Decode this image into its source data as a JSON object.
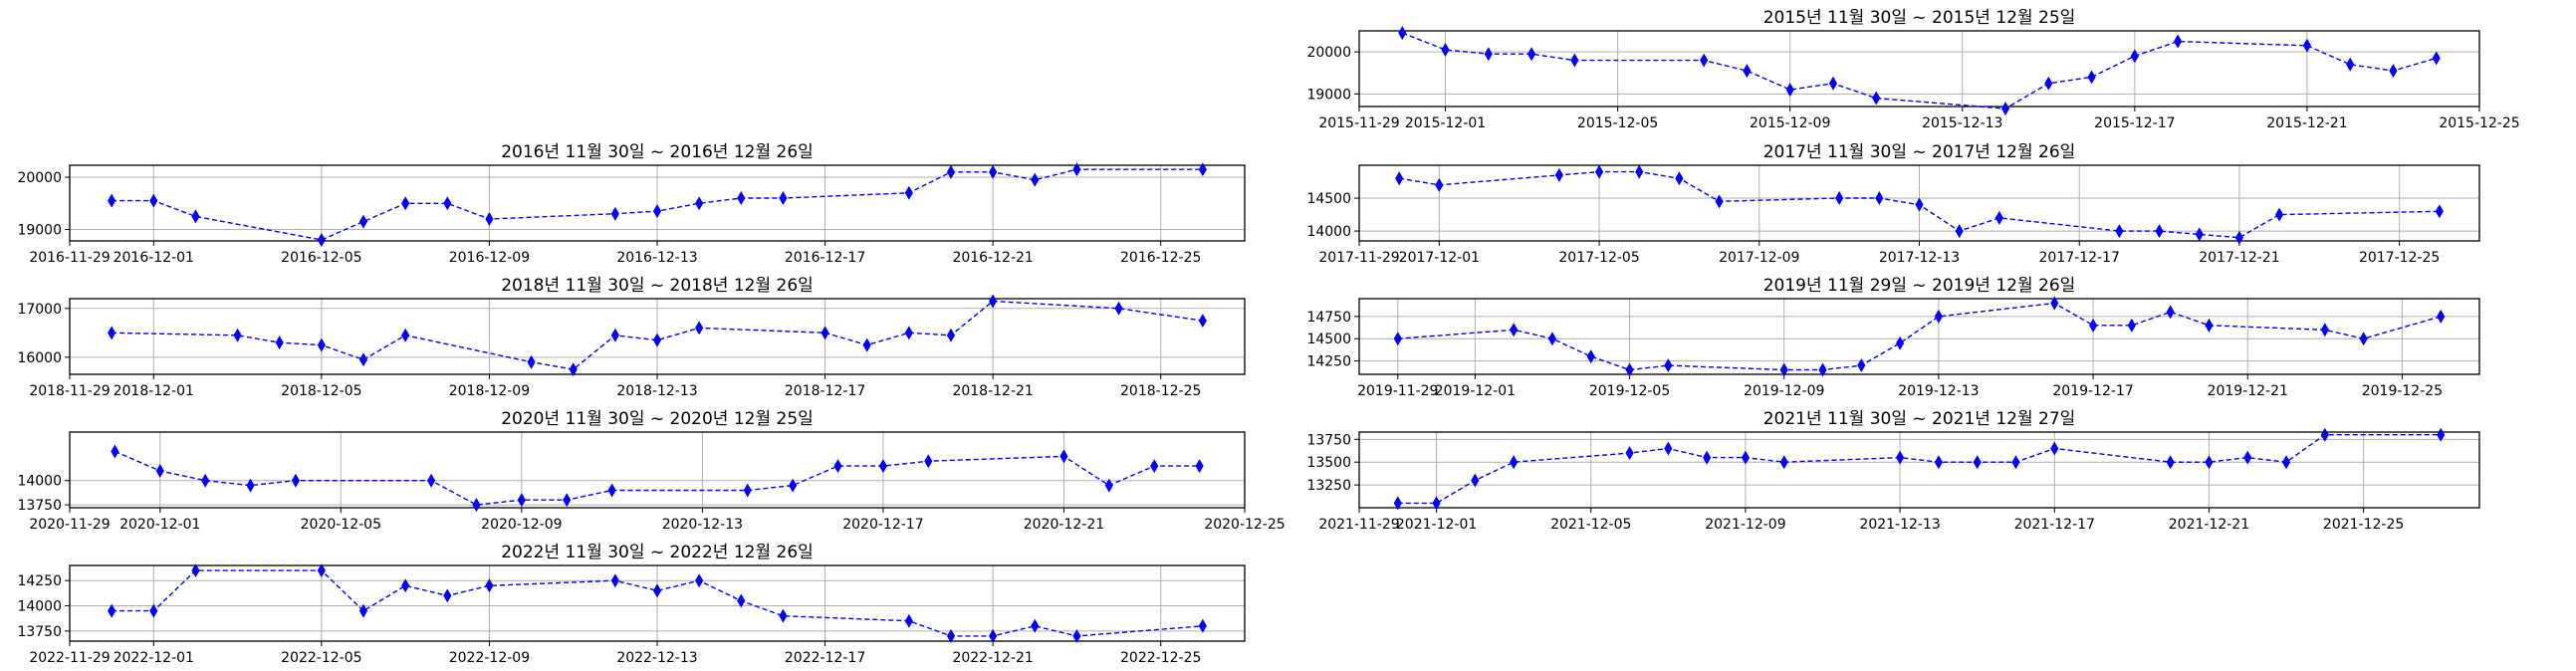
{
  "style": {
    "series_color": "#0000ff",
    "grid_color": "#b0b0b0",
    "marker": "thin-diamond",
    "line_style": "dashed",
    "grid": true
  },
  "chart_data": [
    {
      "id": "y2015",
      "type": "line",
      "title": "2015년 11월 30일 ~ 2015년 12월 25일",
      "xlim": [
        "2015-11-29",
        "2015-12-25"
      ],
      "ylim": [
        18700,
        20500
      ],
      "x_ticks": [
        "2015-11-29",
        "2015-12-01",
        "2015-12-05",
        "2015-12-09",
        "2015-12-13",
        "2015-12-17",
        "2015-12-21",
        "2015-12-25"
      ],
      "y_ticks": [
        19000,
        20000
      ],
      "series": [
        {
          "x": [
            "2015-11-30",
            "2015-12-01",
            "2015-12-02",
            "2015-12-03",
            "2015-12-04",
            "2015-12-07",
            "2015-12-08",
            "2015-12-09",
            "2015-12-10",
            "2015-12-11",
            "2015-12-14",
            "2015-12-15",
            "2015-12-16",
            "2015-12-17",
            "2015-12-18",
            "2015-12-21",
            "2015-12-22",
            "2015-12-23",
            "2015-12-24"
          ],
          "y": [
            20450,
            20050,
            19950,
            19950,
            19800,
            19800,
            19550,
            19100,
            19250,
            18900,
            18650,
            19250,
            19400,
            19900,
            20250,
            20150,
            19700,
            19550,
            19850
          ]
        }
      ]
    },
    {
      "id": "y2016",
      "type": "line",
      "title": "2016년 11월 30일 ~ 2016년 12월 26일",
      "xlim": [
        "2016-11-29",
        "2016-12-27"
      ],
      "ylim": [
        18780,
        20230
      ],
      "x_ticks": [
        "2016-11-29",
        "2016-12-01",
        "2016-12-05",
        "2016-12-09",
        "2016-12-13",
        "2016-12-17",
        "2016-12-21",
        "2016-12-25"
      ],
      "y_ticks": [
        19000,
        20000
      ],
      "series": [
        {
          "x": [
            "2016-11-30",
            "2016-12-01",
            "2016-12-02",
            "2016-12-05",
            "2016-12-06",
            "2016-12-07",
            "2016-12-08",
            "2016-12-09",
            "2016-12-12",
            "2016-12-13",
            "2016-12-14",
            "2016-12-15",
            "2016-12-16",
            "2016-12-19",
            "2016-12-20",
            "2016-12-21",
            "2016-12-22",
            "2016-12-23",
            "2016-12-26"
          ],
          "y": [
            19550,
            19550,
            19250,
            18800,
            19150,
            19500,
            19500,
            19200,
            19300,
            19350,
            19500,
            19600,
            19600,
            19700,
            20100,
            20100,
            19950,
            20150,
            20150
          ]
        }
      ]
    },
    {
      "id": "y2017",
      "type": "line",
      "title": "2017년 11월 30일 ~ 2017년 12월 26일",
      "xlim": [
        "2017-11-29",
        "2017-12-27"
      ],
      "ylim": [
        13850,
        15000
      ],
      "x_ticks": [
        "2017-11-29",
        "2017-12-01",
        "2017-12-05",
        "2017-12-09",
        "2017-12-13",
        "2017-12-17",
        "2017-12-21",
        "2017-12-25"
      ],
      "y_ticks": [
        14000,
        14500
      ],
      "series": [
        {
          "x": [
            "2017-11-30",
            "2017-12-01",
            "2017-12-04",
            "2017-12-05",
            "2017-12-06",
            "2017-12-07",
            "2017-12-08",
            "2017-12-11",
            "2017-12-12",
            "2017-12-13",
            "2017-12-14",
            "2017-12-15",
            "2017-12-18",
            "2017-12-19",
            "2017-12-20",
            "2017-12-21",
            "2017-12-22",
            "2017-12-26"
          ],
          "y": [
            14800,
            14700,
            14850,
            14900,
            14900,
            14800,
            14450,
            14500,
            14500,
            14400,
            14000,
            14200,
            14000,
            14000,
            13950,
            13900,
            14250,
            14300
          ]
        }
      ]
    },
    {
      "id": "y2018",
      "type": "line",
      "title": "2018년 11월 30일 ~ 2018년 12월 26일",
      "xlim": [
        "2018-11-29",
        "2018-12-27"
      ],
      "ylim": [
        15650,
        17200
      ],
      "x_ticks": [
        "2018-11-29",
        "2018-12-01",
        "2018-12-05",
        "2018-12-09",
        "2018-12-13",
        "2018-12-17",
        "2018-12-21",
        "2018-12-25"
      ],
      "y_ticks": [
        16000,
        17000
      ],
      "series": [
        {
          "x": [
            "2018-11-30",
            "2018-12-03",
            "2018-12-04",
            "2018-12-05",
            "2018-12-06",
            "2018-12-07",
            "2018-12-10",
            "2018-12-11",
            "2018-12-12",
            "2018-12-13",
            "2018-12-14",
            "2018-12-17",
            "2018-12-18",
            "2018-12-19",
            "2018-12-20",
            "2018-12-21",
            "2018-12-24",
            "2018-12-26"
          ],
          "y": [
            16500,
            16450,
            16300,
            16250,
            15950,
            16450,
            15900,
            15750,
            16450,
            16350,
            16600,
            16500,
            16250,
            16500,
            16450,
            17150,
            17000,
            16750
          ]
        }
      ]
    },
    {
      "id": "y2019",
      "type": "line",
      "title": "2019년 11월 29일 ~ 2019년 12월 26일",
      "xlim": [
        "2019-11-28",
        "2019-12-27"
      ],
      "ylim": [
        14100,
        14950
      ],
      "x_ticks": [
        "2019-11-29",
        "2019-12-01",
        "2019-12-05",
        "2019-12-09",
        "2019-12-13",
        "2019-12-17",
        "2019-12-21",
        "2019-12-25"
      ],
      "y_ticks": [
        14250,
        14500,
        14750
      ],
      "series": [
        {
          "x": [
            "2019-11-29",
            "2019-12-02",
            "2019-12-03",
            "2019-12-04",
            "2019-12-05",
            "2019-12-06",
            "2019-12-09",
            "2019-12-10",
            "2019-12-11",
            "2019-12-12",
            "2019-12-13",
            "2019-12-16",
            "2019-12-17",
            "2019-12-18",
            "2019-12-19",
            "2019-12-20",
            "2019-12-23",
            "2019-12-24",
            "2019-12-26"
          ],
          "y": [
            14500,
            14600,
            14500,
            14300,
            14150,
            14200,
            14150,
            14150,
            14200,
            14450,
            14750,
            14900,
            14650,
            14650,
            14800,
            14650,
            14600,
            14500,
            14750
          ]
        }
      ]
    },
    {
      "id": "y2020",
      "type": "line",
      "title": "2020년 11월 30일 ~ 2020년 12월 25일",
      "xlim": [
        "2020-11-29",
        "2020-12-25"
      ],
      "ylim": [
        13720,
        14500
      ],
      "x_ticks": [
        "2020-11-29",
        "2020-12-01",
        "2020-12-05",
        "2020-12-09",
        "2020-12-13",
        "2020-12-17",
        "2020-12-21",
        "2020-12-25"
      ],
      "y_ticks": [
        13750,
        14000
      ],
      "series": [
        {
          "x": [
            "2020-11-30",
            "2020-12-01",
            "2020-12-02",
            "2020-12-03",
            "2020-12-04",
            "2020-12-07",
            "2020-12-08",
            "2020-12-09",
            "2020-12-10",
            "2020-12-11",
            "2020-12-14",
            "2020-12-15",
            "2020-12-16",
            "2020-12-17",
            "2020-12-18",
            "2020-12-21",
            "2020-12-22",
            "2020-12-23",
            "2020-12-24"
          ],
          "y": [
            14300,
            14100,
            14000,
            13950,
            14000,
            14000,
            13750,
            13800,
            13800,
            13900,
            13900,
            13950,
            14150,
            14150,
            14200,
            14250,
            13950,
            14150,
            14150
          ]
        }
      ]
    },
    {
      "id": "y2021",
      "type": "line",
      "title": "2021년 11월 30일 ~ 2021년 12월 27일",
      "xlim": [
        "2021-11-29",
        "2021-12-28"
      ],
      "ylim": [
        13000,
        13830
      ],
      "x_ticks": [
        "2021-11-29",
        "2021-12-01",
        "2021-12-05",
        "2021-12-09",
        "2021-12-13",
        "2021-12-17",
        "2021-12-21",
        "2021-12-25"
      ],
      "y_ticks": [
        13250,
        13500,
        13750
      ],
      "series": [
        {
          "x": [
            "2021-11-30",
            "2021-12-01",
            "2021-12-02",
            "2021-12-03",
            "2021-12-06",
            "2021-12-07",
            "2021-12-08",
            "2021-12-09",
            "2021-12-10",
            "2021-12-13",
            "2021-12-14",
            "2021-12-15",
            "2021-12-16",
            "2021-12-17",
            "2021-12-20",
            "2021-12-21",
            "2021-12-22",
            "2021-12-23",
            "2021-12-24",
            "2021-12-27"
          ],
          "y": [
            13050,
            13050,
            13300,
            13500,
            13600,
            13650,
            13550,
            13550,
            13500,
            13550,
            13500,
            13500,
            13500,
            13650,
            13500,
            13500,
            13550,
            13500,
            13800,
            13800
          ]
        }
      ]
    },
    {
      "id": "y2022",
      "type": "line",
      "title": "2022년 11월 30일 ~ 2022년 12월 26일",
      "xlim": [
        "2022-11-29",
        "2022-12-27"
      ],
      "ylim": [
        13650,
        14400
      ],
      "x_ticks": [
        "2022-11-29",
        "2022-12-01",
        "2022-12-05",
        "2022-12-09",
        "2022-12-13",
        "2022-12-17",
        "2022-12-21",
        "2022-12-25"
      ],
      "y_ticks": [
        13750,
        14000,
        14250
      ],
      "series": [
        {
          "x": [
            "2022-11-30",
            "2022-12-01",
            "2022-12-02",
            "2022-12-05",
            "2022-12-06",
            "2022-12-07",
            "2022-12-08",
            "2022-12-09",
            "2022-12-12",
            "2022-12-13",
            "2022-12-14",
            "2022-12-15",
            "2022-12-16",
            "2022-12-19",
            "2022-12-20",
            "2022-12-21",
            "2022-12-22",
            "2022-12-23",
            "2022-12-26"
          ],
          "y": [
            13950,
            13950,
            14350,
            14350,
            13950,
            14200,
            14100,
            14200,
            14250,
            14150,
            14250,
            14050,
            13900,
            13850,
            13700,
            13700,
            13800,
            13700,
            13800
          ]
        }
      ]
    }
  ]
}
